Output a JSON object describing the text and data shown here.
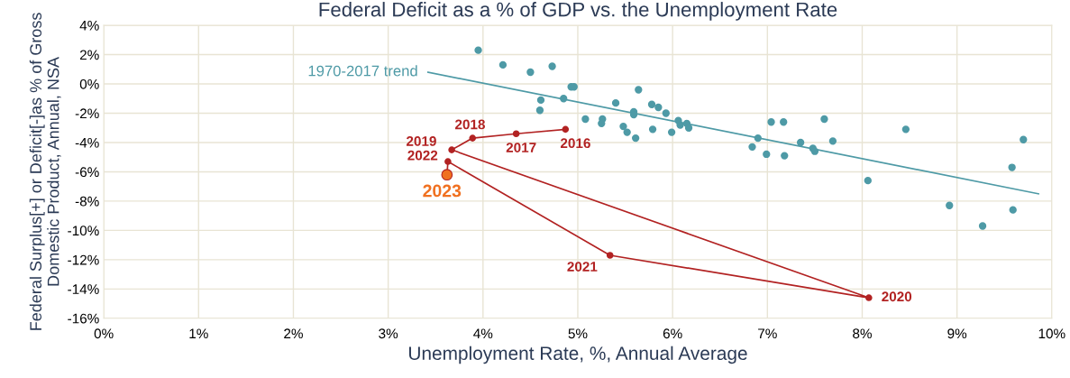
{
  "chart_data": {
    "type": "scatter",
    "title": "Federal Deficit as a % of GDP vs. the Unemployment Rate",
    "xlabel": "Unemployment Rate, %, Annual Average",
    "ylabel": "Federal Surplus[+] or Deficit[-]as % of Gross Domestic Product, Annual, NSA",
    "xlim": [
      0,
      10
    ],
    "ylim": [
      -16,
      4
    ],
    "xticks": [
      {
        "value": 0,
        "label": "0%"
      },
      {
        "value": 1,
        "label": "1%"
      },
      {
        "value": 2,
        "label": "2%"
      },
      {
        "value": 3,
        "label": "3%"
      },
      {
        "value": 4,
        "label": "4%"
      },
      {
        "value": 5,
        "label": "5%"
      },
      {
        "value": 6,
        "label": "6%"
      },
      {
        "value": 7,
        "label": "7%"
      },
      {
        "value": 8,
        "label": "8%"
      },
      {
        "value": 9,
        "label": "9%"
      },
      {
        "value": 10,
        "label": "10%"
      }
    ],
    "yticks": [
      {
        "value": 4,
        "label": "4%"
      },
      {
        "value": 2,
        "label": "2%"
      },
      {
        "value": 0,
        "label": "0%"
      },
      {
        "value": -2,
        "label": "-2%"
      },
      {
        "value": -4,
        "label": "-4%"
      },
      {
        "value": -6,
        "label": "-6%"
      },
      {
        "value": -8,
        "label": "-8%"
      },
      {
        "value": -10,
        "label": "-10%"
      },
      {
        "value": -12,
        "label": "-12%"
      },
      {
        "value": -14,
        "label": "-14%"
      },
      {
        "value": -16,
        "label": "-16%"
      }
    ],
    "grid": true,
    "marker": "circle",
    "series": [
      {
        "color": "#4e9aa6",
        "x": [
          3.95,
          4.21,
          4.5,
          4.73,
          4.61,
          4.6,
          4.85,
          4.93,
          4.96,
          5.08,
          5.26,
          5.25,
          5.4,
          5.48,
          5.52,
          5.61,
          5.64,
          5.59,
          5.59,
          5.78,
          5.85,
          5.79,
          5.93,
          5.99,
          6.06,
          6.08,
          6.15,
          6.17,
          6.84,
          6.9,
          6.99,
          7.04,
          7.17,
          7.18,
          7.35,
          7.48,
          7.5,
          7.6,
          7.69,
          8.06,
          8.46,
          8.92,
          9.27,
          9.58,
          9.59,
          9.7
        ],
        "values": [
          2.3,
          1.3,
          0.8,
          1.2,
          -1.1,
          -1.8,
          -1.0,
          -0.2,
          -0.2,
          -2.4,
          -2.4,
          -2.7,
          -1.3,
          -2.9,
          -3.3,
          -3.7,
          -0.4,
          -1.9,
          -2.1,
          -1.4,
          -1.6,
          -3.1,
          -2.0,
          -3.3,
          -2.5,
          -2.8,
          -2.7,
          -3.0,
          -4.3,
          -3.7,
          -4.8,
          -2.6,
          -2.6,
          -4.9,
          -4.0,
          -4.4,
          -4.6,
          -2.4,
          -3.9,
          -6.6,
          -3.1,
          -8.3,
          -9.7,
          -5.7,
          -8.6,
          -3.8
        ]
      },
      {
        "type": "line",
        "name": "1970-2017 trend",
        "color": "#4e9aa6",
        "marker": "none",
        "x": [
          3.42,
          9.86
        ],
        "values": [
          0.8,
          -7.5
        ]
      },
      {
        "type": "line",
        "color": "#b22222",
        "colors": [
          "#b22222",
          "#b22222",
          "#b22222",
          "#b22222",
          "#b22222",
          "#b22222",
          "#b22222",
          "#f07020"
        ],
        "x": [
          4.87,
          4.35,
          3.89,
          3.67,
          8.07,
          5.34,
          3.63,
          3.62
        ],
        "values": [
          -3.1,
          -3.4,
          -3.7,
          -4.5,
          -14.6,
          -11.7,
          -5.3,
          -6.2
        ]
      }
    ],
    "annotations": [
      {
        "text": "2016",
        "x": 4.87,
        "y": -3.1
      },
      {
        "text": "2017",
        "x": 4.35,
        "y": -3.4
      },
      {
        "text": "2018",
        "x": 3.89,
        "y": -3.7
      },
      {
        "text": "2019",
        "x": 3.67,
        "y": -4.5
      },
      {
        "text": "2020",
        "x": 8.07,
        "y": -14.6
      },
      {
        "text": "2021",
        "x": 5.34,
        "y": -11.7
      },
      {
        "text": "2022",
        "x": 3.63,
        "y": -5.3
      },
      {
        "text": "2023",
        "x": 3.62,
        "y": -6.2
      }
    ]
  }
}
